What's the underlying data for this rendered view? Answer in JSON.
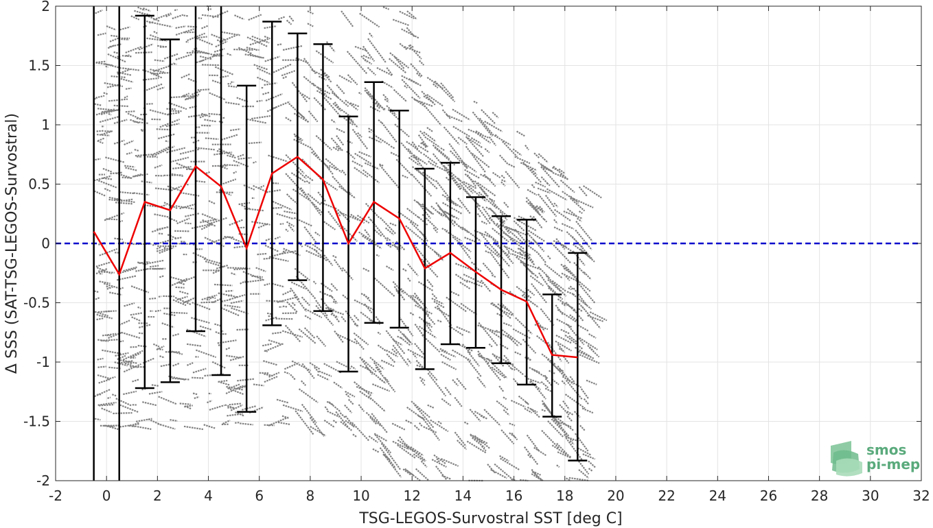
{
  "chart_data": {
    "type": "scatter",
    "title": "",
    "xlabel": "TSG-LEGOS-Survostral SST [deg C]",
    "ylabel": "Δ SSS (SAT-TSG-LEGOS-Survostral)",
    "xlim": [
      -2,
      32
    ],
    "ylim": [
      -2,
      2
    ],
    "xticks": [
      "-2",
      "0",
      "2",
      "4",
      "6",
      "8",
      "10",
      "12",
      "14",
      "16",
      "18",
      "20",
      "22",
      "24",
      "26",
      "28",
      "30",
      "32"
    ],
    "yticks": [
      "-2",
      "-1.5",
      "-1",
      "-0.5",
      "0",
      "0.5",
      "1",
      "1.5",
      "2"
    ],
    "grid": true,
    "reference_line": {
      "y": 0,
      "style": "dashed",
      "color": "#0000cc"
    },
    "mean_series": {
      "color": "#ee0000",
      "x": [
        -0.5,
        0.5,
        1.5,
        2.5,
        3.5,
        4.5,
        5.5,
        6.5,
        7.5,
        8.5,
        9.5,
        10.5,
        11.5,
        12.5,
        13.5,
        14.5,
        15.5,
        16.5,
        17.5,
        18.5
      ],
      "y": [
        0.1,
        -0.26,
        0.35,
        0.28,
        0.65,
        0.48,
        -0.04,
        0.59,
        0.73,
        0.54,
        0.0,
        0.35,
        0.21,
        -0.21,
        -0.08,
        -0.24,
        -0.39,
        -0.49,
        -0.94,
        -0.96
      ]
    },
    "error_bars": {
      "color": "#000000",
      "x": [
        -0.5,
        0.5,
        1.5,
        2.5,
        3.5,
        4.5,
        5.5,
        6.5,
        7.5,
        8.5,
        9.5,
        10.5,
        11.5,
        12.5,
        13.5,
        14.5,
        15.5,
        16.5,
        17.5,
        18.5
      ],
      "lower": [
        -2.5,
        -2.5,
        -1.22,
        -1.17,
        -0.74,
        -1.11,
        -1.42,
        -0.69,
        -0.31,
        -0.57,
        -1.08,
        -0.67,
        -0.71,
        -1.06,
        -0.85,
        -0.88,
        -1.01,
        -1.19,
        -1.46,
        -1.83
      ],
      "upper": [
        2.5,
        2.5,
        1.92,
        1.72,
        2.5,
        2.5,
        1.33,
        1.87,
        1.77,
        1.68,
        1.07,
        1.36,
        1.12,
        0.63,
        0.68,
        0.39,
        0.23,
        0.2,
        -0.43,
        -0.08
      ]
    },
    "scatter": {
      "color": "#808080",
      "approximate": true,
      "x_range": [
        -0.5,
        19
      ],
      "y_range": [
        -2,
        2
      ]
    }
  },
  "logo": {
    "line1": "smos",
    "line2": "pi-mep",
    "color": "#5aaa7c"
  }
}
